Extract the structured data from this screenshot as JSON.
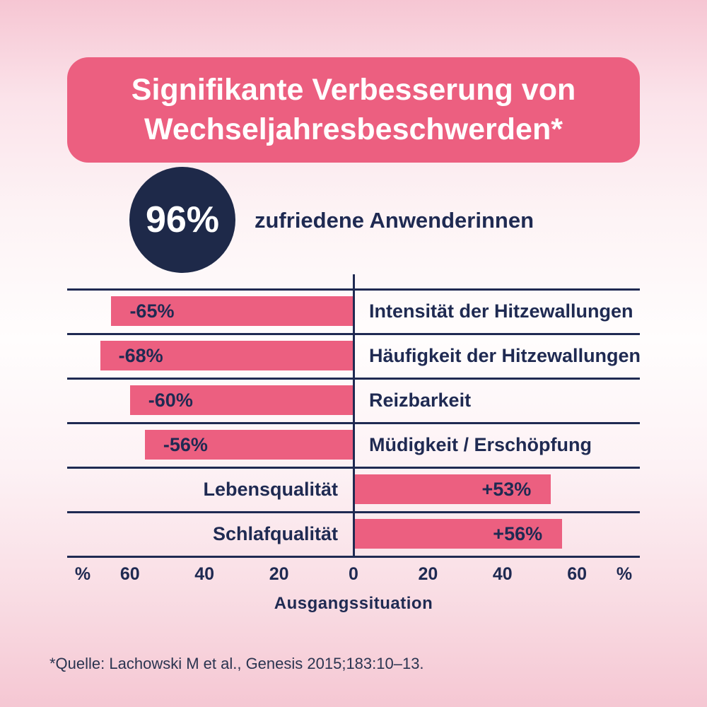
{
  "header": {
    "title_line1": "Signifikante Verbesserung von",
    "title_line2": "Wechseljahresbeschwerden*"
  },
  "stat": {
    "value": "96%",
    "caption": "zufriedene Anwenderinnen"
  },
  "chart_data": {
    "type": "bar",
    "orientation": "horizontal-diverging",
    "rows": [
      {
        "label": "Intensität der Hitzewallungen",
        "value": -65,
        "value_label": "-65%"
      },
      {
        "label": "Häufigkeit der Hitzewallungen",
        "value": -68,
        "value_label": "-68%"
      },
      {
        "label": "Reizbarkeit",
        "value": -60,
        "value_label": "-60%"
      },
      {
        "label": "Müdigkeit / Erschöpfung",
        "value": -56,
        "value_label": "-56%"
      },
      {
        "label": "Lebensqualität",
        "value": 53,
        "value_label": "+53%"
      },
      {
        "label": "Schlafqualität",
        "value": 56,
        "value_label": "+56%"
      }
    ],
    "axis_ticks": [
      "%",
      "60",
      "40",
      "20",
      "0",
      "20",
      "40",
      "60",
      "%"
    ],
    "axis_tick_values": [
      null,
      -60,
      -40,
      -20,
      0,
      20,
      40,
      60,
      null
    ],
    "xlabel": "Ausgangssituation",
    "xlim": [
      -77,
      77
    ],
    "grid": "row-separators",
    "bar_color": "#ec5f80",
    "line_color": "#1f2a52",
    "background_color": "#fdeef2"
  },
  "footnote": {
    "text": "*Quelle: Lachowski M et al., Genesis 2015;183:10–13."
  },
  "colors": {
    "banner_pink": "#ec5f80",
    "navy": "#1f2a52",
    "background_pink": "#f6c6d3",
    "text_white": "#ffffff"
  }
}
